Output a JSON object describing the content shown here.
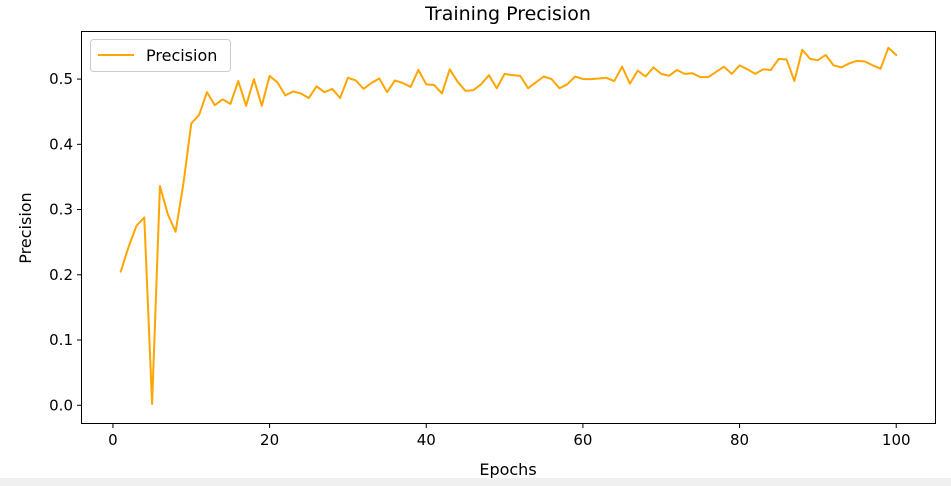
{
  "chart_data": {
    "type": "line",
    "title": "Training Precision",
    "xlabel": "Epochs",
    "ylabel": "Precision",
    "xlim": [
      -3.95,
      104.95
    ],
    "ylim": [
      -0.0272,
      0.5722
    ],
    "xticks": [
      0,
      20,
      40,
      60,
      80,
      100
    ],
    "xtick_labels": [
      "0",
      "20",
      "40",
      "60",
      "80",
      "100"
    ],
    "yticks": [
      0.0,
      0.1,
      0.2,
      0.3,
      0.4,
      0.5
    ],
    "ytick_labels": [
      "0.0",
      "0.1",
      "0.2",
      "0.3",
      "0.4",
      "0.5"
    ],
    "grid": false,
    "legend_position": "upper-left",
    "series": [
      {
        "name": "Precision",
        "color": "#FFA500",
        "x": [
          1,
          2,
          3,
          4,
          5,
          6,
          7,
          8,
          9,
          10,
          11,
          12,
          13,
          14,
          15,
          16,
          17,
          18,
          19,
          20,
          21,
          22,
          23,
          24,
          25,
          26,
          27,
          28,
          29,
          30,
          31,
          32,
          33,
          34,
          35,
          36,
          37,
          38,
          39,
          40,
          41,
          42,
          43,
          44,
          45,
          46,
          47,
          48,
          49,
          50,
          51,
          52,
          53,
          54,
          55,
          56,
          57,
          58,
          59,
          60,
          61,
          62,
          63,
          64,
          65,
          66,
          67,
          68,
          69,
          70,
          71,
          72,
          73,
          74,
          75,
          76,
          77,
          78,
          79,
          80,
          81,
          82,
          83,
          84,
          85,
          86,
          87,
          88,
          89,
          90,
          91,
          92,
          93,
          94,
          95,
          96,
          97,
          98,
          99,
          100
        ],
        "values": [
          0.205,
          0.243,
          0.275,
          0.288,
          0.002,
          0.336,
          0.293,
          0.266,
          0.34,
          0.432,
          0.445,
          0.48,
          0.46,
          0.469,
          0.462,
          0.497,
          0.459,
          0.5,
          0.459,
          0.505,
          0.495,
          0.475,
          0.481,
          0.478,
          0.471,
          0.489,
          0.48,
          0.485,
          0.471,
          0.502,
          0.498,
          0.485,
          0.494,
          0.501,
          0.48,
          0.498,
          0.494,
          0.488,
          0.514,
          0.492,
          0.491,
          0.478,
          0.515,
          0.496,
          0.482,
          0.483,
          0.492,
          0.506,
          0.486,
          0.508,
          0.506,
          0.505,
          0.486,
          0.495,
          0.504,
          0.5,
          0.486,
          0.492,
          0.504,
          0.5,
          0.5,
          0.501,
          0.502,
          0.497,
          0.519,
          0.493,
          0.513,
          0.504,
          0.518,
          0.508,
          0.505,
          0.514,
          0.508,
          0.509,
          0.503,
          0.503,
          0.511,
          0.519,
          0.508,
          0.521,
          0.515,
          0.508,
          0.515,
          0.514,
          0.531,
          0.53,
          0.497,
          0.545,
          0.531,
          0.529,
          0.537,
          0.521,
          0.518,
          0.524,
          0.528,
          0.527,
          0.521,
          0.516,
          0.548,
          0.537
        ]
      }
    ]
  }
}
